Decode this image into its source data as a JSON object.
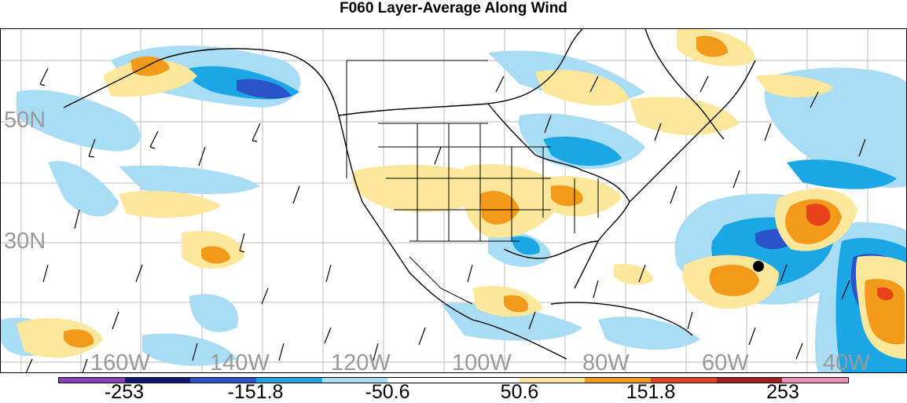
{
  "title": "F060 Layer-Average Along Wind",
  "lat_labels": [
    "50N",
    "30N"
  ],
  "lon_labels": [
    "160W",
    "140W",
    "120W",
    "100W",
    "80W",
    "60W",
    "40W"
  ],
  "colorbar": {
    "colors": [
      "#8e3fbf",
      "#0b1a78",
      "#2a52c9",
      "#1ba6e6",
      "#a9dcf5",
      "#ffffff",
      "#ffffff",
      "#fde79a",
      "#f39a1b",
      "#e8411b",
      "#a51d1d",
      "#f08cb8"
    ],
    "labels": [
      "-253",
      "-151.8",
      "-50.6",
      "50.6",
      "151.8",
      "253"
    ]
  },
  "legend_colors": {
    "light_blue": "#a9dcf5",
    "mid_blue": "#1ba6e6",
    "dark_blue": "#2a52c9",
    "navy": "#0b1a78",
    "yellow": "#fde79a",
    "orange": "#f39a1b",
    "red": "#e8411b"
  }
}
